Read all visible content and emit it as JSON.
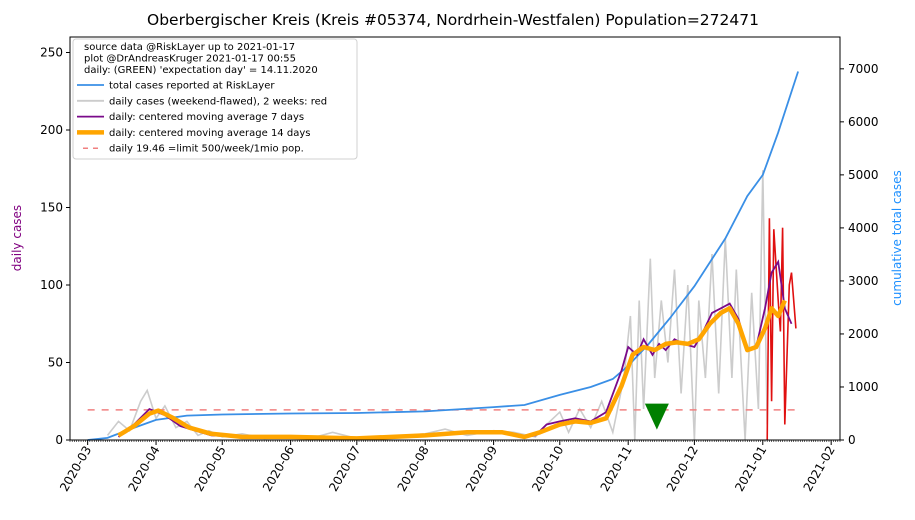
{
  "chart_data": {
    "type": "line",
    "title": "Oberbergischer Kreis (Kreis #05374, Nordrhein-Westfalen) Population=272471",
    "ylabel_left": "daily cases",
    "ylabel_right": "cumulative total cases",
    "ylim_left": [
      0,
      260
    ],
    "ylim_right": [
      0,
      7600
    ],
    "yticks_left": [
      0,
      50,
      100,
      150,
      200,
      250
    ],
    "yticks_right": [
      0,
      1000,
      2000,
      3000,
      4000,
      5000,
      6000,
      7000
    ],
    "xlim": [
      "2020-02-22",
      "2021-02-05"
    ],
    "xticks": [
      "2020-03",
      "2020-04",
      "2020-05",
      "2020-06",
      "2020-07",
      "2020-08",
      "2020-09",
      "2020-10",
      "2020-11",
      "2020-12",
      "2021-01",
      "2021-02"
    ],
    "grid": false,
    "legend_position": "top-left",
    "legend_header": [
      "source data @RiskLayer up to 2021-01-17",
      "plot @DrAndreasKruger 2021-01-17 00:55",
      "daily: (GREEN) 'expectation day' = 14.11.2020"
    ],
    "colors": {
      "total": "#3a8fe6",
      "daily": "#cccccc",
      "daily_recent": "#e01010",
      "ma7": "#7a0a8a",
      "ma14": "#ffa500",
      "limit": "#f08080",
      "marker": "#008000",
      "left_label": "#800080",
      "right_label": "#1e90ff"
    },
    "series": [
      {
        "name": "total cases reported at RiskLayer",
        "axis": "right",
        "points": [
          [
            "2020-03-01",
            0
          ],
          [
            "2020-03-10",
            40
          ],
          [
            "2020-03-20",
            200
          ],
          [
            "2020-04-01",
            380
          ],
          [
            "2020-04-15",
            460
          ],
          [
            "2020-05-01",
            480
          ],
          [
            "2020-06-01",
            500
          ],
          [
            "2020-07-01",
            510
          ],
          [
            "2020-08-01",
            540
          ],
          [
            "2020-09-01",
            620
          ],
          [
            "2020-09-15",
            660
          ],
          [
            "2020-10-01",
            850
          ],
          [
            "2020-10-15",
            1000
          ],
          [
            "2020-10-25",
            1150
          ],
          [
            "2020-11-01",
            1400
          ],
          [
            "2020-11-10",
            1800
          ],
          [
            "2020-11-20",
            2300
          ],
          [
            "2020-12-01",
            2900
          ],
          [
            "2020-12-15",
            3800
          ],
          [
            "2020-12-25",
            4600
          ],
          [
            "2021-01-01",
            5000
          ],
          [
            "2021-01-08",
            5800
          ],
          [
            "2021-01-17",
            6950
          ]
        ]
      },
      {
        "name": "daily cases (weekend-flawed), 2 weeks: red",
        "axis": "left",
        "points": [
          [
            "2020-03-10",
            3
          ],
          [
            "2020-03-15",
            12
          ],
          [
            "2020-03-20",
            6
          ],
          [
            "2020-03-25",
            25
          ],
          [
            "2020-03-28",
            32
          ],
          [
            "2020-04-01",
            14
          ],
          [
            "2020-04-05",
            22
          ],
          [
            "2020-04-10",
            8
          ],
          [
            "2020-04-15",
            12
          ],
          [
            "2020-04-20",
            3
          ],
          [
            "2020-04-25",
            6
          ],
          [
            "2020-05-01",
            2
          ],
          [
            "2020-05-10",
            4
          ],
          [
            "2020-05-20",
            1
          ],
          [
            "2020-06-01",
            2
          ],
          [
            "2020-06-10",
            1
          ],
          [
            "2020-06-20",
            5
          ],
          [
            "2020-07-01",
            1
          ],
          [
            "2020-07-15",
            2
          ],
          [
            "2020-08-01",
            4
          ],
          [
            "2020-08-10",
            7
          ],
          [
            "2020-08-20",
            3
          ],
          [
            "2020-09-01",
            6
          ],
          [
            "2020-09-10",
            5
          ],
          [
            "2020-09-20",
            2
          ],
          [
            "2020-09-25",
            10
          ],
          [
            "2020-10-01",
            18
          ],
          [
            "2020-10-05",
            5
          ],
          [
            "2020-10-10",
            20
          ],
          [
            "2020-10-15",
            8
          ],
          [
            "2020-10-20",
            25
          ],
          [
            "2020-10-25",
            5
          ],
          [
            "2020-10-30",
            40
          ],
          [
            "2020-11-02",
            80
          ],
          [
            "2020-11-04",
            0
          ],
          [
            "2020-11-06",
            90
          ],
          [
            "2020-11-08",
            20
          ],
          [
            "2020-11-11",
            117
          ],
          [
            "2020-11-13",
            40
          ],
          [
            "2020-11-16",
            90
          ],
          [
            "2020-11-19",
            50
          ],
          [
            "2020-11-22",
            110
          ],
          [
            "2020-11-25",
            30
          ],
          [
            "2020-11-28",
            100
          ],
          [
            "2020-12-01",
            0
          ],
          [
            "2020-12-03",
            90
          ],
          [
            "2020-12-06",
            40
          ],
          [
            "2020-12-09",
            120
          ],
          [
            "2020-12-12",
            30
          ],
          [
            "2020-12-15",
            130
          ],
          [
            "2020-12-18",
            40
          ],
          [
            "2020-12-20",
            110
          ],
          [
            "2020-12-24",
            0
          ],
          [
            "2020-12-27",
            95
          ],
          [
            "2020-12-30",
            20
          ],
          [
            "2021-01-01",
            174
          ],
          [
            "2021-01-03",
            10
          ]
        ]
      },
      {
        "name": "daily cases recent 2 weeks",
        "axis": "left",
        "points": [
          [
            "2021-01-03",
            0
          ],
          [
            "2021-01-04",
            143
          ],
          [
            "2021-01-05",
            25
          ],
          [
            "2021-01-06",
            136
          ],
          [
            "2021-01-08",
            90
          ],
          [
            "2021-01-09",
            70
          ],
          [
            "2021-01-10",
            137
          ],
          [
            "2021-01-11",
            10
          ],
          [
            "2021-01-13",
            100
          ],
          [
            "2021-01-14",
            108
          ],
          [
            "2021-01-16",
            72
          ]
        ]
      },
      {
        "name": "daily: centered moving average 7 days",
        "axis": "left",
        "points": [
          [
            "2020-03-15",
            2
          ],
          [
            "2020-03-22",
            10
          ],
          [
            "2020-03-29",
            20
          ],
          [
            "2020-04-05",
            16
          ],
          [
            "2020-04-12",
            9
          ],
          [
            "2020-04-19",
            6
          ],
          [
            "2020-04-26",
            3
          ],
          [
            "2020-05-10",
            2
          ],
          [
            "2020-06-01",
            2
          ],
          [
            "2020-07-01",
            1
          ],
          [
            "2020-08-01",
            3
          ],
          [
            "2020-08-20",
            5
          ],
          [
            "2020-09-05",
            5
          ],
          [
            "2020-09-15",
            2
          ],
          [
            "2020-09-20",
            3
          ],
          [
            "2020-09-25",
            10
          ],
          [
            "2020-10-01",
            12
          ],
          [
            "2020-10-08",
            14
          ],
          [
            "2020-10-15",
            12
          ],
          [
            "2020-10-22",
            18
          ],
          [
            "2020-10-29",
            45
          ],
          [
            "2020-11-01",
            60
          ],
          [
            "2020-11-05",
            55
          ],
          [
            "2020-11-08",
            65
          ],
          [
            "2020-11-12",
            55
          ],
          [
            "2020-11-15",
            62
          ],
          [
            "2020-11-18",
            58
          ],
          [
            "2020-11-22",
            65
          ],
          [
            "2020-11-26",
            62
          ],
          [
            "2020-12-01",
            60
          ],
          [
            "2020-12-05",
            70
          ],
          [
            "2020-12-09",
            82
          ],
          [
            "2020-12-13",
            85
          ],
          [
            "2020-12-17",
            88
          ],
          [
            "2020-12-21",
            78
          ],
          [
            "2020-12-25",
            58
          ],
          [
            "2020-12-29",
            60
          ],
          [
            "2021-01-02",
            85
          ],
          [
            "2021-01-05",
            108
          ],
          [
            "2021-01-08",
            115
          ],
          [
            "2021-01-11",
            85
          ],
          [
            "2021-01-14",
            75
          ]
        ]
      },
      {
        "name": "daily: centered moving average 14 days",
        "axis": "left",
        "points": [
          [
            "2020-03-15",
            3
          ],
          [
            "2020-03-22",
            9
          ],
          [
            "2020-03-29",
            17
          ],
          [
            "2020-04-02",
            19
          ],
          [
            "2020-04-09",
            14
          ],
          [
            "2020-04-16",
            8
          ],
          [
            "2020-04-26",
            4
          ],
          [
            "2020-05-10",
            2
          ],
          [
            "2020-06-01",
            2
          ],
          [
            "2020-07-01",
            1
          ],
          [
            "2020-08-01",
            3
          ],
          [
            "2020-08-20",
            5
          ],
          [
            "2020-09-05",
            5
          ],
          [
            "2020-09-15",
            2
          ],
          [
            "2020-09-22",
            5
          ],
          [
            "2020-10-01",
            10
          ],
          [
            "2020-10-08",
            12
          ],
          [
            "2020-10-15",
            11
          ],
          [
            "2020-10-22",
            14
          ],
          [
            "2020-10-29",
            35
          ],
          [
            "2020-11-03",
            55
          ],
          [
            "2020-11-08",
            60
          ],
          [
            "2020-11-13",
            58
          ],
          [
            "2020-11-18",
            62
          ],
          [
            "2020-11-23",
            63
          ],
          [
            "2020-11-28",
            62
          ],
          [
            "2020-12-03",
            65
          ],
          [
            "2020-12-08",
            75
          ],
          [
            "2020-12-13",
            82
          ],
          [
            "2020-12-17",
            85
          ],
          [
            "2020-12-21",
            75
          ],
          [
            "2020-12-25",
            58
          ],
          [
            "2020-12-29",
            60
          ],
          [
            "2021-01-02",
            72
          ],
          [
            "2021-01-05",
            85
          ],
          [
            "2021-01-08",
            80
          ],
          [
            "2021-01-11",
            90
          ]
        ]
      },
      {
        "name": "daily 19.46 =limit 500/week/1mio pop.",
        "axis": "left",
        "value": 19.46
      }
    ],
    "expectation_marker": {
      "date": "2020-11-14",
      "value": 8
    }
  }
}
